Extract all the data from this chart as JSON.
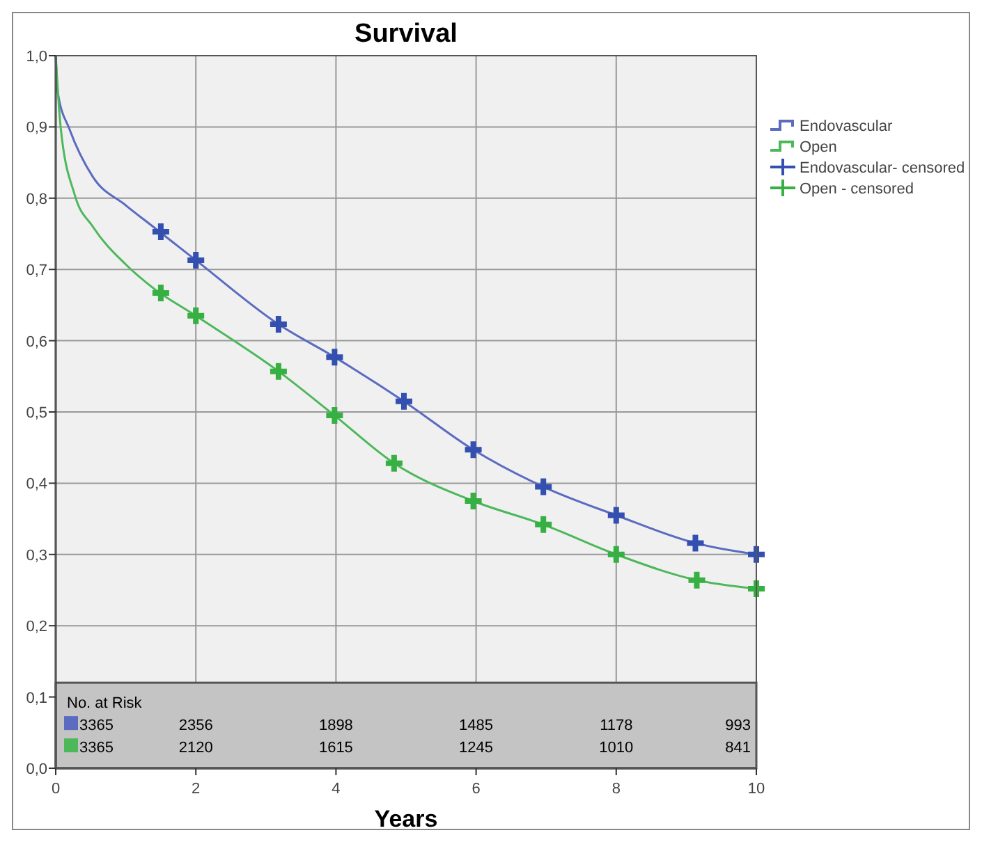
{
  "chart_data": {
    "type": "line",
    "title": "Survival",
    "xlabel": "Years",
    "xlim": [
      0,
      10
    ],
    "xticks": [
      0,
      2,
      4,
      6,
      8,
      10
    ],
    "ylim": [
      0,
      1
    ],
    "yticks": [
      {
        "value": 0,
        "label": "0,0"
      },
      {
        "value": 0.1,
        "label": "0,1"
      },
      {
        "value": 0.2,
        "label": "0,2"
      },
      {
        "value": 0.3,
        "label": "0,3"
      },
      {
        "value": 0.4,
        "label": "0,4"
      },
      {
        "value": 0.5,
        "label": "0,5"
      },
      {
        "value": 0.6,
        "label": "0,6"
      },
      {
        "value": 0.7,
        "label": "0,7"
      },
      {
        "value": 0.8,
        "label": "0,8"
      },
      {
        "value": 0.9,
        "label": "0,9"
      },
      {
        "value": 1,
        "label": "1,0"
      }
    ],
    "grid": true,
    "legend": "right",
    "line_style": "solid",
    "series": [
      {
        "name": "Endovascular",
        "color": "#5a6bc0",
        "x": [
          0,
          0.03,
          0.2,
          0.53,
          1.0,
          1.39,
          2,
          3.18,
          3.98,
          4.97,
          5.96,
          6.96,
          8,
          9.13,
          10
        ],
        "values": [
          1.0,
          0.948,
          0.896,
          0.83,
          0.79,
          0.76,
          0.713,
          0.623,
          0.577,
          0.515,
          0.447,
          0.395,
          0.355,
          0.316,
          0.3
        ]
      },
      {
        "name": "Open",
        "color": "#4cb85a",
        "x": [
          0,
          0.07,
          0.27,
          0.53,
          1.0,
          1.39,
          2,
          3.18,
          3.98,
          4.83,
          5.96,
          6.96,
          8,
          9.15,
          10
        ],
        "values": [
          1.0,
          0.9,
          0.805,
          0.76,
          0.707,
          0.674,
          0.635,
          0.557,
          0.495,
          0.428,
          0.375,
          0.342,
          0.3,
          0.264,
          0.252
        ]
      },
      {
        "name": "Endovascular- censored",
        "type": "scatter",
        "marker": "cross",
        "color": "#3350b0",
        "x": [
          1.5,
          2,
          3.18,
          3.98,
          4.97,
          5.96,
          6.96,
          8,
          9.13,
          10
        ],
        "values": [
          0.753,
          0.713,
          0.623,
          0.577,
          0.515,
          0.447,
          0.395,
          0.355,
          0.316,
          0.3
        ]
      },
      {
        "name": "Open - censored",
        "type": "scatter",
        "marker": "cross",
        "color": "#36b043",
        "x": [
          1.5,
          2,
          3.18,
          3.98,
          4.83,
          5.96,
          6.96,
          8,
          9.15,
          10
        ],
        "values": [
          0.667,
          0.635,
          0.557,
          0.495,
          0.428,
          0.375,
          0.342,
          0.3,
          0.264,
          0.252
        ]
      }
    ],
    "annotations": [
      "No. at Risk",
      "3365 2356 1898 1485 1178 993",
      "3365 2120 1615 1245 1010 841"
    ]
  }
}
